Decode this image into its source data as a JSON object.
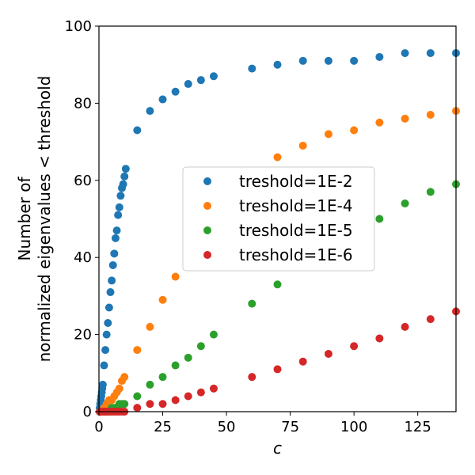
{
  "chart_data": {
    "type": "scatter",
    "title": "",
    "xlabel": "c",
    "ylabel_lines": [
      "Number of",
      "normalized eigenvalues < threshold"
    ],
    "xlim": [
      0,
      140
    ],
    "ylim": [
      0,
      100
    ],
    "x_ticks": [
      0,
      25,
      50,
      75,
      100,
      125
    ],
    "x_tick_labels": [
      "0",
      "25",
      "50",
      "75",
      "100",
      "125"
    ],
    "y_ticks": [
      0,
      20,
      40,
      60,
      80,
      100
    ],
    "y_tick_labels": [
      "0",
      "20",
      "40",
      "60",
      "80",
      "100"
    ],
    "grid": false,
    "legend_position": "center-right",
    "series": [
      {
        "name": "treshold=1E-2",
        "color": "#1f77b4",
        "points": [
          [
            0.3,
            1
          ],
          [
            0.5,
            2
          ],
          [
            0.7,
            3
          ],
          [
            0.9,
            4
          ],
          [
            1.1,
            5
          ],
          [
            1.3,
            6
          ],
          [
            1.5,
            7
          ],
          [
            2,
            12
          ],
          [
            2.5,
            16
          ],
          [
            3,
            20
          ],
          [
            3.5,
            23
          ],
          [
            4,
            27
          ],
          [
            4.5,
            31
          ],
          [
            5,
            34
          ],
          [
            5.5,
            38
          ],
          [
            6,
            41
          ],
          [
            6.5,
            45
          ],
          [
            7,
            47
          ],
          [
            7.5,
            51
          ],
          [
            8,
            53
          ],
          [
            8.5,
            56
          ],
          [
            9,
            58
          ],
          [
            9.5,
            59
          ],
          [
            10,
            61
          ],
          [
            10.5,
            63
          ],
          [
            15,
            73
          ],
          [
            20,
            78
          ],
          [
            25,
            81
          ],
          [
            30,
            83
          ],
          [
            35,
            85
          ],
          [
            40,
            86
          ],
          [
            45,
            87
          ],
          [
            60,
            89
          ],
          [
            70,
            90
          ],
          [
            80,
            91
          ],
          [
            90,
            91
          ],
          [
            100,
            91
          ],
          [
            110,
            92
          ],
          [
            120,
            93
          ],
          [
            130,
            93
          ],
          [
            140,
            93
          ]
        ]
      },
      {
        "name": "treshold=1E-4",
        "color": "#ff7f0e",
        "points": [
          [
            0.3,
            0
          ],
          [
            1,
            0
          ],
          [
            2,
            1
          ],
          [
            3,
            2
          ],
          [
            4,
            3
          ],
          [
            5,
            3
          ],
          [
            6,
            4
          ],
          [
            7,
            5
          ],
          [
            8,
            6
          ],
          [
            9,
            8
          ],
          [
            10,
            9
          ],
          [
            15,
            16
          ],
          [
            20,
            22
          ],
          [
            25,
            29
          ],
          [
            30,
            35
          ],
          [
            70,
            66
          ],
          [
            80,
            69
          ],
          [
            90,
            72
          ],
          [
            100,
            73
          ],
          [
            110,
            75
          ],
          [
            120,
            76
          ],
          [
            130,
            77
          ],
          [
            140,
            78
          ]
        ]
      },
      {
        "name": "treshold=1E-5",
        "color": "#2ca02c",
        "points": [
          [
            0.3,
            0
          ],
          [
            1,
            0
          ],
          [
            2,
            0
          ],
          [
            3,
            0
          ],
          [
            4,
            0
          ],
          [
            5,
            1
          ],
          [
            6,
            1
          ],
          [
            7,
            1
          ],
          [
            8,
            2
          ],
          [
            9,
            2
          ],
          [
            10,
            2
          ],
          [
            15,
            4
          ],
          [
            20,
            7
          ],
          [
            25,
            9
          ],
          [
            30,
            12
          ],
          [
            35,
            14
          ],
          [
            40,
            17
          ],
          [
            45,
            20
          ],
          [
            60,
            28
          ],
          [
            70,
            33
          ],
          [
            110,
            50
          ],
          [
            120,
            54
          ],
          [
            130,
            57
          ],
          [
            140,
            59
          ]
        ]
      },
      {
        "name": "treshold=1E-6",
        "color": "#d62728",
        "points": [
          [
            0.3,
            0
          ],
          [
            1,
            0
          ],
          [
            2,
            0
          ],
          [
            3,
            0
          ],
          [
            4,
            0
          ],
          [
            5,
            0
          ],
          [
            6,
            0
          ],
          [
            7,
            0
          ],
          [
            8,
            0
          ],
          [
            9,
            0
          ],
          [
            10,
            0
          ],
          [
            15,
            1
          ],
          [
            20,
            2
          ],
          [
            25,
            2
          ],
          [
            30,
            3
          ],
          [
            35,
            4
          ],
          [
            40,
            5
          ],
          [
            45,
            6
          ],
          [
            60,
            9
          ],
          [
            70,
            11
          ],
          [
            80,
            13
          ],
          [
            90,
            15
          ],
          [
            100,
            17
          ],
          [
            110,
            19
          ],
          [
            120,
            22
          ],
          [
            130,
            24
          ],
          [
            140,
            26
          ]
        ]
      }
    ]
  }
}
